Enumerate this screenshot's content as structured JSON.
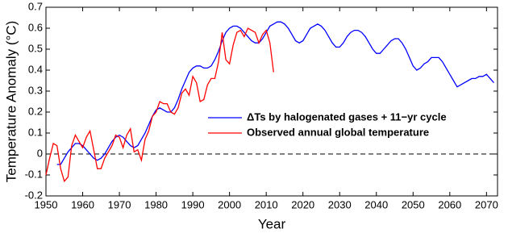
{
  "chart_data": {
    "type": "line",
    "x_label": "Year",
    "y_label": "Temperature Anomaly (°C)",
    "xlim": [
      1950,
      2073
    ],
    "ylim": [
      -0.2,
      0.7
    ],
    "xticks": [
      1950,
      1960,
      1970,
      1980,
      1990,
      2000,
      2010,
      2020,
      2030,
      2040,
      2050,
      2060,
      2070
    ],
    "yticks": [
      -0.2,
      -0.1,
      0,
      0.1,
      0.2,
      0.3,
      0.4,
      0.5,
      0.6,
      0.7
    ],
    "reference_line": {
      "y": 0,
      "style": "dashed"
    },
    "legend": "center-right",
    "x": [
      1950,
      1951,
      1952,
      1953,
      1954,
      1955,
      1956,
      1957,
      1958,
      1959,
      1960,
      1961,
      1962,
      1963,
      1964,
      1965,
      1966,
      1967,
      1968,
      1969,
      1970,
      1971,
      1972,
      1973,
      1974,
      1975,
      1976,
      1977,
      1978,
      1979,
      1980,
      1981,
      1982,
      1983,
      1984,
      1985,
      1986,
      1987,
      1988,
      1989,
      1990,
      1991,
      1992,
      1993,
      1994,
      1995,
      1996,
      1997,
      1998,
      1999,
      2000,
      2001,
      2002,
      2003,
      2004,
      2005,
      2006,
      2007,
      2008,
      2009,
      2010,
      2011,
      2012,
      2013,
      2014,
      2015,
      2016,
      2017,
      2018,
      2019,
      2020,
      2021,
      2022,
      2023,
      2024,
      2025,
      2026,
      2027,
      2028,
      2029,
      2030,
      2031,
      2032,
      2033,
      2034,
      2035,
      2036,
      2037,
      2038,
      2039,
      2040,
      2041,
      2042,
      2043,
      2044,
      2045,
      2046,
      2047,
      2048,
      2049,
      2050,
      2051,
      2052,
      2053,
      2054,
      2055,
      2056,
      2057,
      2058,
      2059,
      2060,
      2061,
      2062,
      2063,
      2064,
      2065,
      2066,
      2067,
      2068,
      2069,
      2070,
      2071,
      2072
    ],
    "series": [
      {
        "name": "ΔTs by halogenated gases + 11−yr cycle",
        "color": "#0000ff",
        "values": [
          null,
          null,
          null,
          -0.05,
          -0.05,
          -0.02,
          0.01,
          0.03,
          0.05,
          0.05,
          0.04,
          0.02,
          0.0,
          -0.02,
          -0.03,
          -0.02,
          0.0,
          0.03,
          0.06,
          0.08,
          0.09,
          0.08,
          0.06,
          0.04,
          0.03,
          0.04,
          0.07,
          0.1,
          0.14,
          0.18,
          0.21,
          0.22,
          0.21,
          0.2,
          0.2,
          0.22,
          0.26,
          0.31,
          0.35,
          0.39,
          0.41,
          0.42,
          0.42,
          0.41,
          0.41,
          0.42,
          0.45,
          0.49,
          0.54,
          0.58,
          0.6,
          0.61,
          0.61,
          0.6,
          0.58,
          0.56,
          0.54,
          0.53,
          0.53,
          0.55,
          0.58,
          0.61,
          0.62,
          0.63,
          0.63,
          0.62,
          0.6,
          0.57,
          0.54,
          0.53,
          0.54,
          0.57,
          0.6,
          0.61,
          0.62,
          0.61,
          0.59,
          0.56,
          0.53,
          0.51,
          0.51,
          0.53,
          0.56,
          0.58,
          0.59,
          0.59,
          0.58,
          0.56,
          0.53,
          0.5,
          0.48,
          0.48,
          0.5,
          0.52,
          0.54,
          0.55,
          0.55,
          0.53,
          0.5,
          0.46,
          0.42,
          0.4,
          0.41,
          0.43,
          0.44,
          0.46,
          0.46,
          0.46,
          0.44,
          0.41,
          0.38,
          0.35,
          0.32,
          0.33,
          0.34,
          0.35,
          0.36,
          0.36,
          0.37,
          0.37,
          0.38,
          0.36,
          0.34
        ]
      },
      {
        "name": "Observed annual global temperature",
        "color": "#ff0000",
        "values": [
          -0.1,
          -0.02,
          0.05,
          0.04,
          -0.07,
          -0.13,
          -0.11,
          0.04,
          0.09,
          0.06,
          0.03,
          0.08,
          0.11,
          0.02,
          -0.07,
          -0.07,
          -0.02,
          0.01,
          0.04,
          0.09,
          0.08,
          0.03,
          0.09,
          0.12,
          0.01,
          0.02,
          -0.03,
          0.07,
          0.11,
          0.18,
          0.2,
          0.25,
          0.24,
          0.24,
          0.2,
          0.19,
          0.22,
          0.29,
          0.31,
          0.28,
          0.37,
          0.34,
          0.25,
          0.26,
          0.33,
          0.36,
          0.36,
          0.44,
          0.58,
          0.45,
          0.43,
          0.52,
          0.58,
          0.59,
          0.56,
          0.6,
          0.59,
          0.58,
          0.53,
          0.57,
          0.59,
          0.53,
          0.39,
          null,
          null,
          null,
          null,
          null,
          null,
          null,
          null,
          null,
          null,
          null,
          null,
          null,
          null,
          null,
          null,
          null,
          null,
          null,
          null,
          null,
          null,
          null,
          null,
          null,
          null,
          null,
          null,
          null,
          null,
          null,
          null,
          null,
          null,
          null,
          null,
          null,
          null,
          null,
          null,
          null,
          null,
          null,
          null,
          null,
          null,
          null,
          null,
          null,
          null,
          null,
          null,
          null,
          null,
          null,
          null,
          null,
          null,
          null,
          null
        ]
      }
    ]
  }
}
